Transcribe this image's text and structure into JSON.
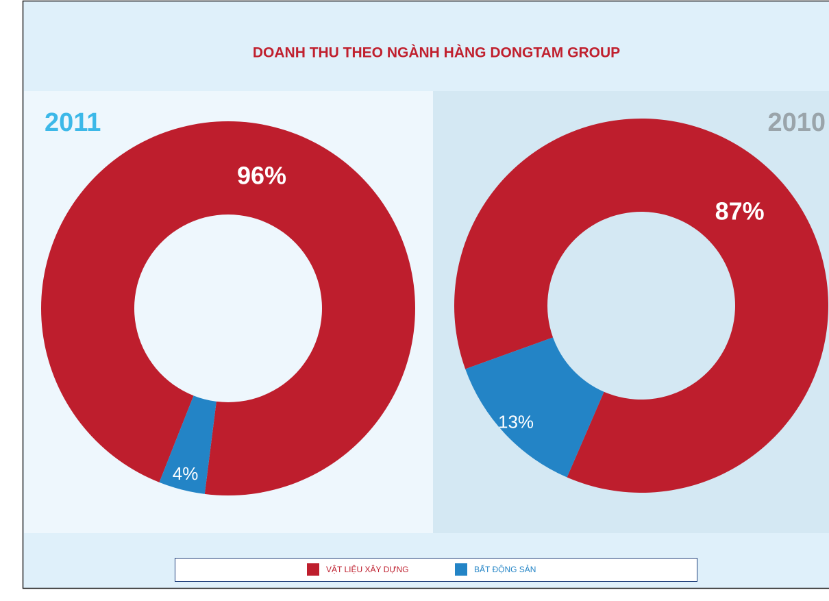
{
  "title": "DOANH THU THEO NGÀNH HÀNG DONGTAM GROUP",
  "chart_data": [
    {
      "type": "pie",
      "title": "2011",
      "categories": [
        "VẬT LIỆU XÂY DỰNG",
        "BẤT ĐỘNG SẢN"
      ],
      "values": [
        96,
        4
      ],
      "value_labels": [
        "96%",
        "4%"
      ],
      "colors": [
        "#be1e2d",
        "#2384c6"
      ]
    },
    {
      "type": "pie",
      "title": "2010",
      "categories": [
        "VẬT LIỆU XÂY DỰNG",
        "BẤT ĐỘNG SẢN"
      ],
      "values": [
        87,
        13
      ],
      "value_labels": [
        "87%",
        "13%"
      ],
      "colors": [
        "#be1e2d",
        "#2384c6"
      ]
    }
  ]
}
